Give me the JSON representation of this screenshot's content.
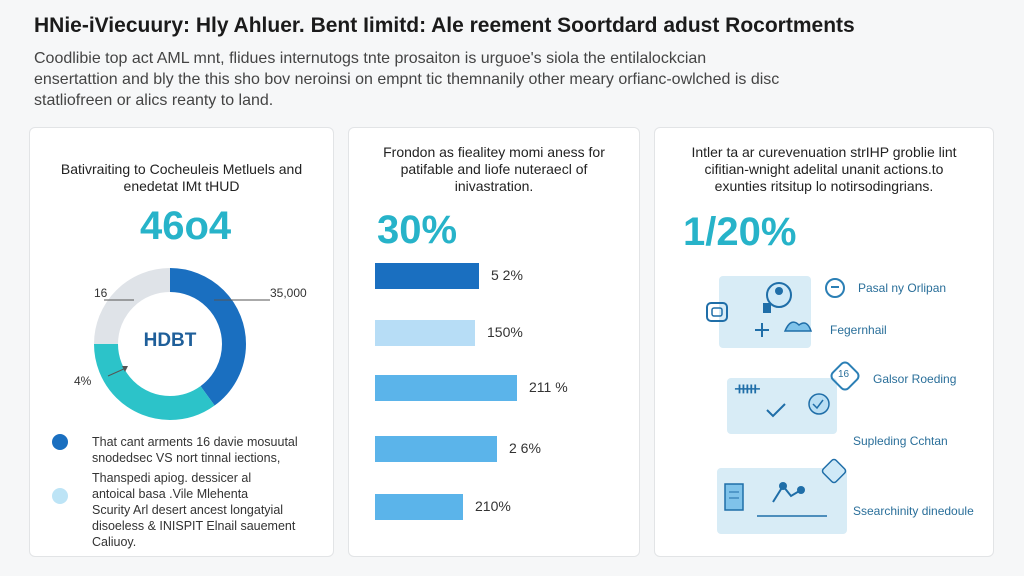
{
  "header": {
    "title": "HNie-iViecuury: Hly Ahluer. Bent Iimitd: Ale reement Soortdard adust Rocortments",
    "intro_lines": [
      "Coodlibie top act AML mnt, flidues internutogs tnte prosaiton is urguoe's siola the entilalockcian",
      "ensertattion and bly the this sho bov neroinsi on empnt tic themnanily other meary orfianc-owlched is disc",
      "statliofreen or alics reanty to land."
    ]
  },
  "card1": {
    "heading_lines": [
      "Bativraiting to Cocheuleis Metluels and",
      "enedetat IMt tHUD"
    ],
    "big_stat": "46o4",
    "donut_center": "HDBT",
    "label_left_top": "16",
    "label_right": "35,000",
    "label_left_bottom": "4%",
    "donut_fractions": [
      0.4,
      0.35,
      0.25
    ],
    "legend": [
      {
        "color": "#1a6fc0",
        "lines": [
          "That cant arments 16 davie mosuutal",
          "snodedsec VS nort tinnal iections,"
        ]
      },
      {
        "color": "#bde4f6",
        "lines": [
          "Thanspedi apiog. dessicer al",
          "antoical basa .Vile Mlehenta",
          "Scurity Arl desert ancest longatyial",
          "disoeless & INISPIT Elnail sauement",
          "Caliuoy."
        ]
      }
    ]
  },
  "card2": {
    "heading_lines": [
      "Frondon as fiealitey momi aness for",
      "patifable and liofe nuteraecl of",
      "inivastration."
    ],
    "big_stat": "30%",
    "bars": [
      {
        "value_label": "5 2%",
        "fraction": 0.52,
        "color": "#1a6fc0"
      },
      {
        "value_label": "150%",
        "fraction": 0.5,
        "color": "#b7ddf6"
      },
      {
        "value_label": "211 %",
        "fraction": 0.71,
        "color": "#5bb4ea"
      },
      {
        "value_label": "2 6%",
        "fraction": 0.61,
        "color": "#5bb4ea"
      },
      {
        "value_label": "210%",
        "fraction": 0.44,
        "color": "#5bb4ea"
      }
    ]
  },
  "card3": {
    "heading_lines": [
      "Intler ta ar curevenuation strIHP groblie lint",
      "cifitian-wnight adelital unanit actions.to",
      "exunties ritsitup lo notirsodingrians."
    ],
    "big_stat": "1/20%",
    "labels": {
      "pasal": "Pasal ny Orlipan",
      "fegernhail": "Fegernhail",
      "badge": "16",
      "galsor": "Galsor Roeding",
      "supleding": "Supleding Cchtan",
      "searchinity": "Ssearchinity dinedoule"
    }
  }
}
